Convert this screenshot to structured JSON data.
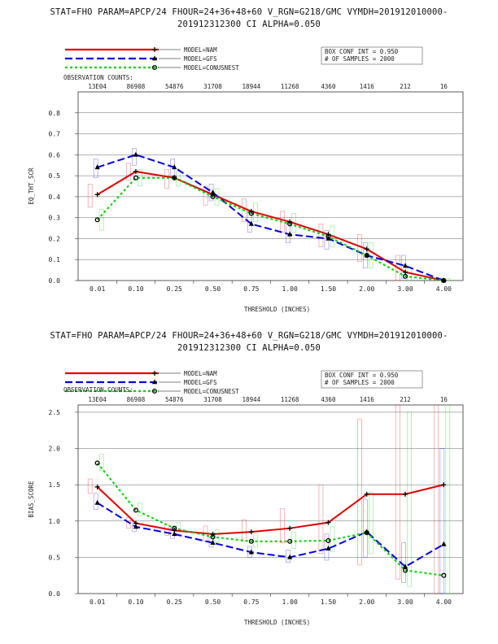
{
  "chart_data": [
    {
      "type": "line",
      "title_line1": "STAT=FHO PARAM=APCP/24 FHOUR=24+36+48+60 V_RGN=G218/GMC VYMDH=201912010000-",
      "title_line2": "201912312300 CI ALPHA=0.050",
      "xlabel": "THRESHOLD (INCHES)",
      "ylabel": "EQ_THT_SCR",
      "categories": [
        "0.01",
        "0.10",
        "0.25",
        "0.50",
        "0.75",
        "1.00",
        "1.50",
        "2.00",
        "3.00",
        "4.00"
      ],
      "obs_label": "OBSERVATION COUNTS:",
      "obs_counts": [
        "13E04",
        "86908",
        "54876",
        "31708",
        "18944",
        "11268",
        "4360",
        "1416",
        "212",
        "16"
      ],
      "ylim": [
        0,
        0.9
      ],
      "yticks": [
        "0.0",
        "0.1",
        "0.2",
        "0.3",
        "0.4",
        "0.5",
        "0.6",
        "0.7",
        "0.8"
      ],
      "info_line1": "BOX CONF INT = 0.950",
      "info_line2": "# OF SAMPLES =  2000",
      "series": [
        {
          "name": "MODEL=NAM",
          "color": "#e00000",
          "values": [
            0.41,
            0.52,
            0.49,
            0.41,
            0.33,
            0.28,
            0.22,
            0.15,
            0.04,
            0.0
          ]
        },
        {
          "name": "MODEL=GFS",
          "color": "#0000e0",
          "values": [
            0.54,
            0.6,
            0.54,
            0.42,
            0.27,
            0.22,
            0.2,
            0.12,
            0.07,
            0.0
          ]
        },
        {
          "name": "MODEL=CONUSNEST",
          "color": "#00d000",
          "values": [
            0.29,
            0.49,
            0.49,
            0.4,
            0.32,
            0.27,
            0.21,
            0.12,
            0.02,
            0.0
          ]
        }
      ],
      "boxes": [
        [
          [
            0.35,
            0.46
          ],
          [
            0.48,
            0.56
          ],
          [
            0.44,
            0.53
          ],
          [
            0.36,
            0.45
          ],
          [
            0.28,
            0.39
          ],
          [
            0.23,
            0.33
          ],
          [
            0.16,
            0.27
          ],
          [
            0.09,
            0.22
          ],
          [
            0.0,
            0.12
          ],
          [
            0.0,
            0.01
          ]
        ],
        [
          [
            0.49,
            0.58
          ],
          [
            0.55,
            0.63
          ],
          [
            0.5,
            0.58
          ],
          [
            0.38,
            0.46
          ],
          [
            0.23,
            0.32
          ],
          [
            0.18,
            0.27
          ],
          [
            0.15,
            0.24
          ],
          [
            0.06,
            0.18
          ],
          [
            0.01,
            0.12
          ],
          [
            0.0,
            0.01
          ]
        ],
        [
          [
            0.24,
            0.34
          ],
          [
            0.45,
            0.53
          ],
          [
            0.45,
            0.52
          ],
          [
            0.36,
            0.44
          ],
          [
            0.28,
            0.37
          ],
          [
            0.23,
            0.32
          ],
          [
            0.16,
            0.26
          ],
          [
            0.06,
            0.18
          ],
          [
            0.0,
            0.06
          ],
          [
            0.0,
            0.01
          ]
        ]
      ]
    },
    {
      "type": "line",
      "title_line1": "STAT=FHO PARAM=APCP/24 FHOUR=24+36+48+60 V_RGN=G218/GMC VYMDH=201912010000-",
      "title_line2": "201912312300 CI ALPHA=0.050",
      "xlabel": "THRESHOLD (INCHES)",
      "ylabel": "BIAS_SCORE",
      "categories": [
        "0.01",
        "0.10",
        "0.25",
        "0.50",
        "0.75",
        "1.00",
        "1.50",
        "2.00",
        "3.00",
        "4.00"
      ],
      "obs_label": "OBSERVATION COUNTS:",
      "obs_counts": [
        "13E04",
        "86908",
        "54876",
        "31708",
        "18944",
        "11268",
        "4360",
        "1416",
        "212",
        "16"
      ],
      "ylim": [
        0,
        2.6
      ],
      "yticks": [
        "0.0",
        "0.5",
        "1.0",
        "1.5",
        "2.0",
        "2.5"
      ],
      "info_line1": "BOX CONF INT = 0.950",
      "info_line2": "# OF SAMPLES =  2000",
      "series": [
        {
          "name": "MODEL=NAM",
          "color": "#e00000",
          "values": [
            1.47,
            0.97,
            0.87,
            0.82,
            0.85,
            0.9,
            0.98,
            1.37,
            1.37,
            1.5
          ]
        },
        {
          "name": "MODEL=GFS",
          "color": "#0000e0",
          "values": [
            1.25,
            0.92,
            0.82,
            0.7,
            0.57,
            0.5,
            0.62,
            0.85,
            0.37,
            0.68
          ]
        },
        {
          "name": "MODEL=CONUSNEST",
          "color": "#00d000",
          "values": [
            1.8,
            1.15,
            0.9,
            0.78,
            0.72,
            0.72,
            0.73,
            0.84,
            0.32,
            0.25
          ]
        }
      ],
      "boxes": [
        [
          [
            1.38,
            1.58
          ],
          [
            0.9,
            1.05
          ],
          [
            0.8,
            0.95
          ],
          [
            0.72,
            0.93
          ],
          [
            0.72,
            1.02
          ],
          [
            0.7,
            1.17
          ],
          [
            0.55,
            1.5
          ],
          [
            0.4,
            2.4
          ],
          [
            0.2,
            2.6
          ],
          [
            0.0,
            2.6
          ]
        ],
        [
          [
            1.16,
            1.38
          ],
          [
            0.86,
            1.0
          ],
          [
            0.76,
            0.9
          ],
          [
            0.64,
            0.78
          ],
          [
            0.5,
            0.65
          ],
          [
            0.43,
            0.6
          ],
          [
            0.46,
            0.82
          ],
          [
            0.5,
            1.3
          ],
          [
            0.15,
            0.7
          ],
          [
            0.0,
            2.0
          ]
        ],
        [
          [
            1.7,
            1.92
          ],
          [
            1.07,
            1.25
          ],
          [
            0.83,
            0.98
          ],
          [
            0.71,
            0.88
          ],
          [
            0.64,
            0.82
          ],
          [
            0.62,
            0.85
          ],
          [
            0.58,
            0.92
          ],
          [
            0.55,
            1.4
          ],
          [
            0.1,
            2.5
          ],
          [
            0.0,
            2.6
          ]
        ]
      ]
    }
  ]
}
